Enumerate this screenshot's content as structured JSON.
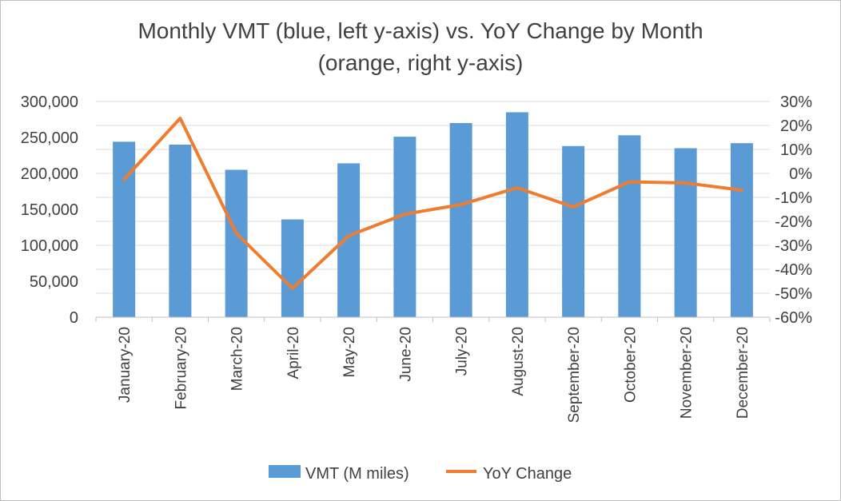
{
  "chart_data": {
    "type": "bar+line",
    "title_line1": "Monthly VMT (blue, left y-axis) vs. YoY Change by Month",
    "title_line2": "(orange, right y-axis)",
    "categories": [
      "January-20",
      "February-20",
      "March-20",
      "April-20",
      "May-20",
      "June-20",
      "July-20",
      "August-20",
      "September-20",
      "October-20",
      "November-20",
      "December-20"
    ],
    "series": [
      {
        "name": "VMT (M miles)",
        "type": "bar",
        "axis": "left",
        "color": "#5b9bd5",
        "values": [
          244000,
          240000,
          205000,
          136000,
          214000,
          251000,
          270000,
          285000,
          238000,
          253000,
          235000,
          242000
        ]
      },
      {
        "name": "YoY Change",
        "type": "line",
        "axis": "right",
        "color": "#ed7d31",
        "values": [
          -2.5,
          23,
          -25,
          -48,
          -26,
          -17,
          -13,
          -6,
          -14,
          -3.5,
          -4,
          -7
        ]
      }
    ],
    "left_axis": {
      "min": 0,
      "max": 300000,
      "step": 50000,
      "tick_labels": [
        "0",
        "50,000",
        "100,000",
        "150,000",
        "200,000",
        "250,000",
        "300,000"
      ]
    },
    "right_axis": {
      "min": -60,
      "max": 30,
      "step": 10,
      "tick_labels": [
        "-60%",
        "-50%",
        "-40%",
        "-30%",
        "-20%",
        "-10%",
        "0%",
        "10%",
        "20%",
        "30%"
      ]
    },
    "grid": true,
    "legend_position": "bottom",
    "legend": [
      "VMT (M miles)",
      "YoY Change"
    ]
  }
}
